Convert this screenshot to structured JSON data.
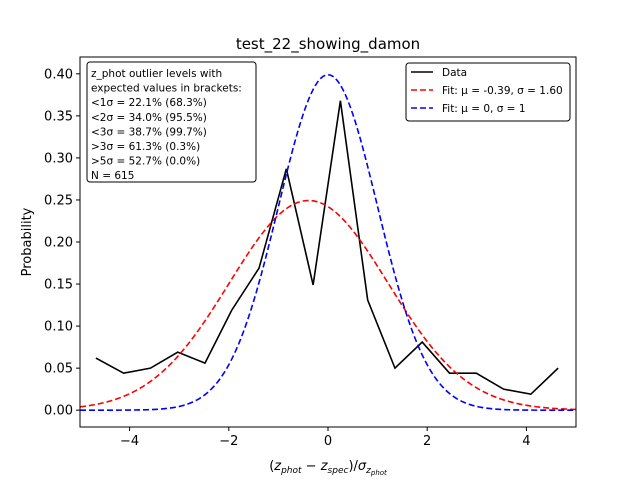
{
  "chart_data": {
    "type": "line",
    "title": "test_22_showing_damon",
    "xlabel": "(z_phot − z_spec)/σ_z_phot",
    "ylabel": "Probability",
    "xlim": [
      -5,
      5
    ],
    "ylim": [
      -0.02,
      0.42
    ],
    "xticks": [
      -4,
      -2,
      0,
      2,
      4
    ],
    "xtick_labels": [
      "−4",
      "−2",
      "0",
      "2",
      "4"
    ],
    "yticks": [
      0.0,
      0.05,
      0.1,
      0.15,
      0.2,
      0.25,
      0.3,
      0.35,
      0.4
    ],
    "ytick_labels": [
      "0.00",
      "0.05",
      "0.10",
      "0.15",
      "0.20",
      "0.25",
      "0.30",
      "0.35",
      "0.40"
    ],
    "grid": false,
    "legend_position": "top-right",
    "series": [
      {
        "name": "Data",
        "color": "#000000",
        "dash": "solid",
        "x": [
          -4.68,
          -4.12,
          -3.58,
          -3.03,
          -2.48,
          -1.94,
          -1.39,
          -0.84,
          -0.3,
          0.25,
          0.8,
          1.35,
          1.9,
          2.45,
          2.99,
          3.54,
          4.09,
          4.64
        ],
        "y": [
          0.062,
          0.044,
          0.05,
          0.069,
          0.056,
          0.119,
          0.169,
          0.287,
          0.149,
          0.368,
          0.131,
          0.05,
          0.081,
          0.044,
          0.044,
          0.025,
          0.019,
          0.05
        ]
      },
      {
        "name": "Fit: μ = -0.39, σ = 1.60",
        "color": "#ff0000",
        "dash": "dashed",
        "mu": -0.39,
        "sigma": 1.6
      },
      {
        "name": "Fit: μ = 0, σ = 1",
        "color": "#0000ff",
        "dash": "dashed",
        "mu": 0,
        "sigma": 1
      }
    ],
    "annotation": {
      "lines": [
        "z_phot outlier levels with",
        " expected values in brackets:",
        "<1σ = 22.1% (68.3%)",
        "<2σ = 34.0% (95.5%)",
        "<3σ = 38.7% (99.7%)",
        ">3σ = 61.3% (0.3%)",
        ">5σ = 52.7% (0.0%)",
        "N = 615"
      ]
    }
  }
}
